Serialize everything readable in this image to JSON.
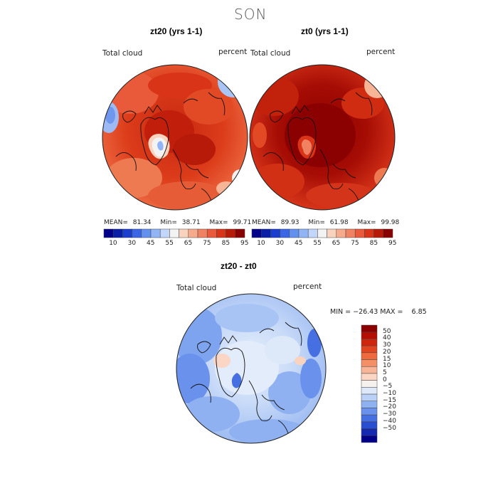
{
  "season": "SON",
  "panels": [
    {
      "title": "zt20 (yrs 1-1)",
      "field_label": "Total cloud",
      "unit_label": "percent",
      "stats": {
        "mean_label": "MEAN=",
        "mean": "81.34",
        "min_label": "Min=",
        "min": "38.71",
        "max_label": "Max=",
        "max": "99.71"
      }
    },
    {
      "title": "zt0 (yrs 1-1)",
      "field_label": "Total cloud",
      "unit_label": "percent",
      "stats": {
        "mean_label": "MEAN=",
        "mean": "89.93",
        "min_label": "Min=",
        "min": "61.98",
        "max_label": "Max=",
        "max": "99.98"
      }
    }
  ],
  "top_colorbar": {
    "colors": [
      "#00008b",
      "#0a1fa8",
      "#1a3fd0",
      "#3a66e6",
      "#6290ef",
      "#90b4f5",
      "#c2d6fa",
      "#f3f3f3",
      "#fad3bf",
      "#f7ab8b",
      "#f18261",
      "#e95a3a",
      "#d93418",
      "#b81a0a",
      "#8b0000"
    ],
    "labels": [
      "10",
      "30",
      "45",
      "55",
      "65",
      "75",
      "85",
      "95"
    ]
  },
  "diff_panel": {
    "title": "zt20 - zt0",
    "field_label": "Total cloud",
    "unit_label": "percent",
    "stats_text": "MIN = −26.43 MAX =    6.85"
  },
  "diff_colorbar": {
    "colors": [
      "#8b0000",
      "#b30d04",
      "#d0250d",
      "#e24420",
      "#ee6a3e",
      "#f48f66",
      "#f8b496",
      "#fbd6c4",
      "#f5f1ee",
      "#dde8f9",
      "#bad0f6",
      "#8fb1f1",
      "#6a91eb",
      "#4670e2",
      "#2a4ed2",
      "#1428b0",
      "#00008b"
    ],
    "labels": [
      "50",
      "40",
      "30",
      "20",
      "15",
      "10",
      "5",
      "0",
      "−5",
      "−10",
      "−15",
      "−20",
      "−30",
      "−40",
      "−50"
    ]
  }
}
